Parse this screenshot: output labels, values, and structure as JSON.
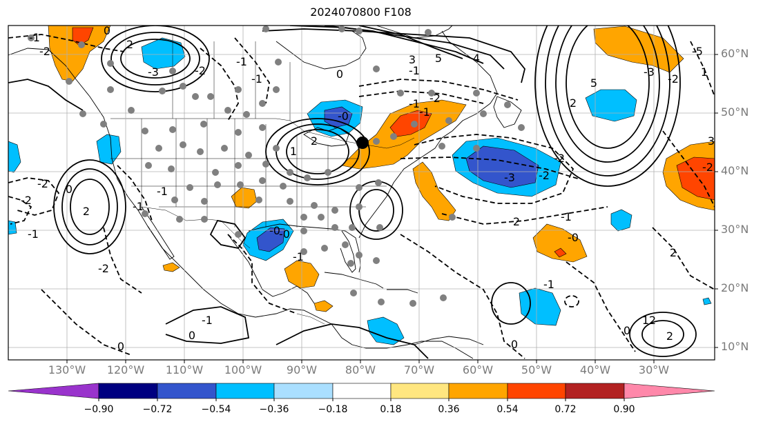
{
  "title": "2024070800 F108",
  "lat_labels": [
    "60°N",
    "50°N",
    "40°N",
    "30°N",
    "20°N",
    "10°N"
  ],
  "lon_labels": [
    "130°W",
    "120°W",
    "110°W",
    "100°W",
    "90°W",
    "80°W",
    "70°W",
    "60°W",
    "50°W",
    "40°W",
    "30°W"
  ],
  "colorbar": {
    "tick_labels": [
      "−0.90",
      "−0.72",
      "−0.54",
      "−0.36",
      "−0.18",
      "0.18",
      "0.36",
      "0.54",
      "0.72",
      "0.90"
    ],
    "colors": [
      "#9933cc",
      "#000080",
      "#3355cc",
      "#00bfff",
      "#aadfff",
      "#ffffff",
      "#ffe680",
      "#ffa500",
      "#ff4500",
      "#b22222",
      "#ff88aa"
    ]
  },
  "palette": {
    "land_outline": "#000000",
    "gridline": "#b0b0b0",
    "station_dot": "#808080",
    "marker": "#000000"
  },
  "contour_labels": [
    "-1",
    "-2",
    "0",
    "2",
    "-3",
    "-2",
    "-1",
    "-1",
    "0",
    "-1",
    "3",
    "5",
    "4",
    "-2",
    "-1",
    "-5",
    "1",
    "5",
    "-3",
    "-2",
    "-0",
    "2",
    "0",
    "-2",
    "2",
    "-2",
    "-3",
    "-1",
    "-1",
    "2",
    "-2",
    "-0",
    "-1",
    "-2",
    "2",
    "-1",
    "2",
    "3",
    "-2",
    "-1",
    "-1",
    "0",
    "-1",
    "-1",
    "0",
    "-0",
    "-2",
    "2",
    "1",
    "0",
    "0",
    "-0",
    "1",
    "2"
  ]
}
